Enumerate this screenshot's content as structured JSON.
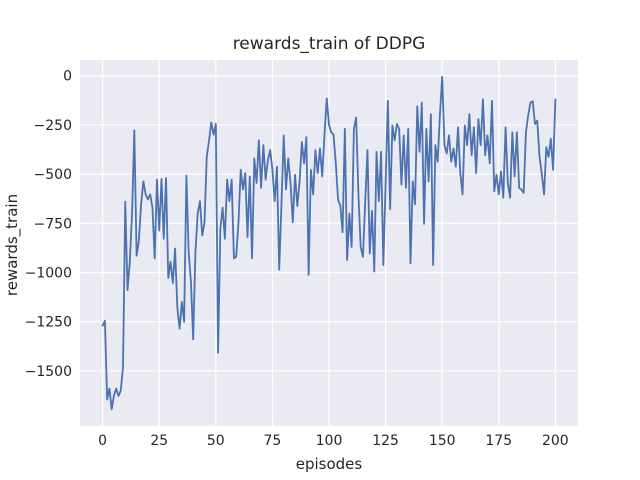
{
  "figure": {
    "title": "rewards_train of DDPG"
  },
  "chart_data": {
    "type": "line",
    "title": "rewards_train of DDPG",
    "xlabel": "episodes",
    "ylabel": "rewards_train",
    "x_ticks": [
      0,
      25,
      50,
      75,
      100,
      125,
      150,
      175,
      200
    ],
    "y_ticks": [
      0,
      -250,
      -500,
      -750,
      -1000,
      -1250,
      -1500
    ],
    "xlim": [
      -10,
      210
    ],
    "ylim": [
      -1780,
      80
    ],
    "grid": true,
    "legend_position": "none",
    "plot_background": "#EAEAF2",
    "grid_color": "#FFFFFF",
    "line_color": "#4C72B0",
    "text_color": "#262626",
    "series": [
      {
        "name": "rewards_train",
        "x_start": 0,
        "x_step": 1,
        "values": [
          -1270,
          -1245,
          -1645,
          -1590,
          -1695,
          -1625,
          -1590,
          -1628,
          -1600,
          -1480,
          -640,
          -1090,
          -945,
          -700,
          -278,
          -915,
          -840,
          -650,
          -537,
          -603,
          -628,
          -603,
          -670,
          -928,
          -528,
          -787,
          -525,
          -828,
          -520,
          -1028,
          -945,
          -1053,
          -878,
          -1178,
          -1285,
          -1150,
          -1250,
          -508,
          -895,
          -1045,
          -1340,
          -895,
          -700,
          -637,
          -812,
          -745,
          -412,
          -330,
          -237,
          -300,
          -245,
          -1408,
          -778,
          -670,
          -828,
          -528,
          -637,
          -528,
          -928,
          -920,
          -750,
          -478,
          -578,
          -495,
          -820,
          -512,
          -928,
          -420,
          -545,
          -328,
          -570,
          -353,
          -528,
          -430,
          -378,
          -478,
          -637,
          -462,
          -986,
          -650,
          -303,
          -578,
          -420,
          -545,
          -745,
          -503,
          -662,
          -540,
          -337,
          -445,
          -312,
          -1012,
          -478,
          -603,
          -378,
          -495,
          -370,
          -512,
          -300,
          -115,
          -250,
          -287,
          -300,
          -445,
          -630,
          -660,
          -795,
          -270,
          -937,
          -700,
          -870,
          -270,
          -212,
          -603,
          -870,
          -920,
          -640,
          -378,
          -903,
          -687,
          -995,
          -387,
          -637,
          -387,
          -962,
          -553,
          -128,
          -678,
          -253,
          -328,
          -245,
          -270,
          -553,
          -303,
          -570,
          -270,
          -953,
          -537,
          -653,
          -155,
          -387,
          -137,
          -753,
          -270,
          -537,
          -195,
          -962,
          -353,
          -437,
          -200,
          -5,
          -353,
          -395,
          -303,
          -437,
          -370,
          -462,
          -262,
          -495,
          -603,
          -253,
          -353,
          -195,
          -403,
          -262,
          -495,
          -220,
          -353,
          -120,
          -403,
          -303,
          -445,
          -128,
          -587,
          -503,
          -603,
          -487,
          -620,
          -262,
          -545,
          -620,
          -287,
          -512,
          -287,
          -570,
          -578,
          -595,
          -287,
          -200,
          -137,
          -130,
          -245,
          -228,
          -412,
          -500,
          -603,
          -362,
          -412,
          -320,
          -478,
          -120
        ]
      }
    ]
  }
}
